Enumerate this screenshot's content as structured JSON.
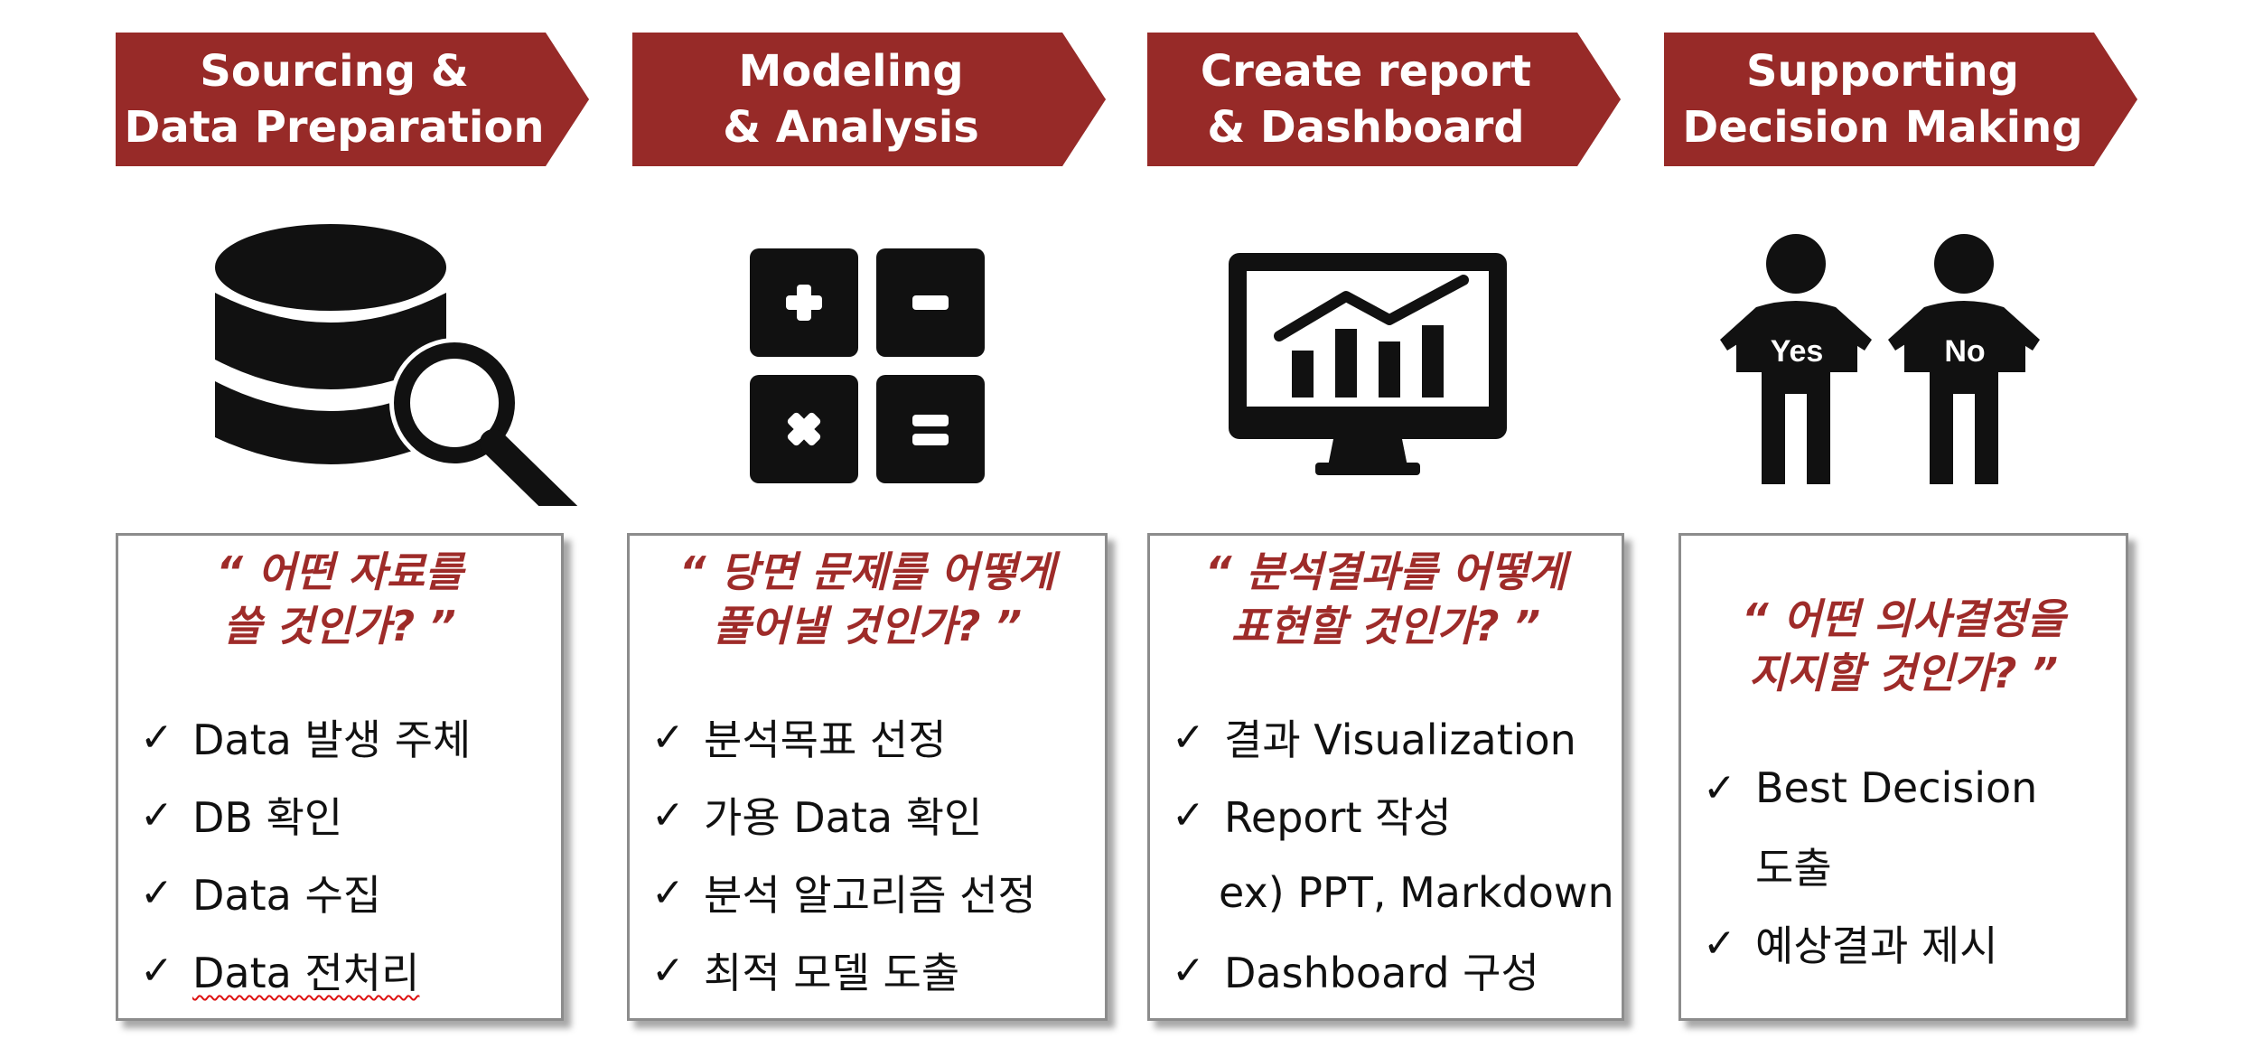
{
  "stages": [
    {
      "title": [
        "Sourcing &",
        "Data Preparation"
      ],
      "icon": "database-search-icon",
      "question": [
        "“ 어떤 자료를",
        "쓸 것인가? ”"
      ],
      "items": [
        "Data 발생 주체",
        "DB 확인",
        "Data 수집",
        "Data 전처리"
      ]
    },
    {
      "title": [
        "Modeling",
        "& Analysis"
      ],
      "icon": "calculator-icon",
      "question": [
        "“ 당면 문제를 어떻게",
        "풀어낼 것인가? ”"
      ],
      "items": [
        "분석목표 선정",
        "가용 Data 확인",
        "분석 알고리즘 선정",
        "최적 모델 도출"
      ]
    },
    {
      "title": [
        "Create report",
        "& Dashboard"
      ],
      "icon": "monitor-chart-icon",
      "question": [
        "“ 분석결과를 어떻게",
        "표현할 것인가? ”"
      ],
      "items": [
        "결과 Visualization",
        "Report 작성",
        "Dashboard 구성"
      ],
      "item_note": "ex) PPT, Markdown"
    },
    {
      "title": [
        "Supporting",
        "Decision Making"
      ],
      "icon": "yes-no-people-icon",
      "question": [
        "“ 어떤 의사결정을",
        "지지할 것인가? ”"
      ],
      "items": [
        "Best Decision",
        "예상결과 제시"
      ],
      "item_continuation": "도출",
      "sign_labels": [
        "Yes",
        "No"
      ]
    }
  ],
  "check_mark": "✓",
  "colors": {
    "accent": "#972a28",
    "quote": "#9e2b29",
    "border": "#8c8c8c"
  }
}
